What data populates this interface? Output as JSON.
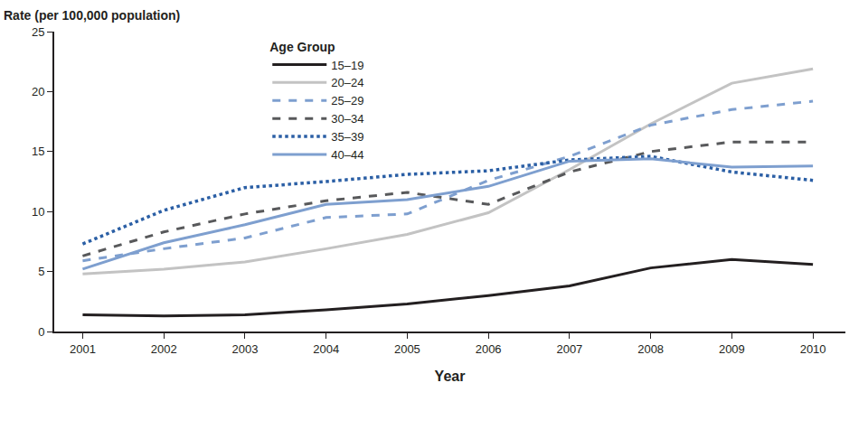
{
  "chart_data": {
    "type": "line",
    "y_label": "Rate (per 100,000 population)",
    "x_label": "Year",
    "legend_title": "Age Group",
    "legend": "top-left",
    "grid": false,
    "x": [
      2001,
      2002,
      2003,
      2004,
      2005,
      2006,
      2007,
      2008,
      2009,
      2010
    ],
    "xlim": [
      2000.65,
      2010.4
    ],
    "xticks": [
      2001,
      2002,
      2003,
      2004,
      2005,
      2006,
      2007,
      2008,
      2009,
      2010
    ],
    "ylim": [
      0,
      25
    ],
    "yticks": [
      0,
      5,
      10,
      15,
      20,
      25
    ],
    "series": [
      {
        "name": "15–19",
        "color": "#231f20",
        "line_style": "solid",
        "values": [
          1.4,
          1.3,
          1.4,
          1.8,
          2.3,
          3.0,
          3.8,
          5.3,
          6.0,
          5.6
        ]
      },
      {
        "name": "20–24",
        "color": "#c3c3c3",
        "line_style": "solid",
        "values": [
          4.8,
          5.2,
          5.8,
          6.9,
          8.1,
          9.9,
          13.5,
          17.3,
          20.7,
          21.9
        ]
      },
      {
        "name": "25–29",
        "color": "#7e9fcf",
        "line_style": "dash",
        "values": [
          5.9,
          6.9,
          7.8,
          9.5,
          9.8,
          12.6,
          14.6,
          17.2,
          18.5,
          19.2
        ]
      },
      {
        "name": "30–34",
        "color": "#58595b",
        "line_style": "dash",
        "values": [
          6.3,
          8.3,
          9.8,
          10.9,
          11.6,
          10.6,
          13.3,
          15.0,
          15.8,
          15.8
        ]
      },
      {
        "name": "35–39",
        "color": "#2b5fa5",
        "line_style": "dot",
        "values": [
          7.3,
          10.1,
          12.0,
          12.5,
          13.1,
          13.4,
          14.3,
          14.6,
          13.3,
          12.6
        ]
      },
      {
        "name": "40–44",
        "color": "#7e9fcf",
        "line_style": "solid",
        "values": [
          5.2,
          7.4,
          8.9,
          10.6,
          11.0,
          12.1,
          14.2,
          14.4,
          13.7,
          13.8
        ]
      }
    ]
  }
}
